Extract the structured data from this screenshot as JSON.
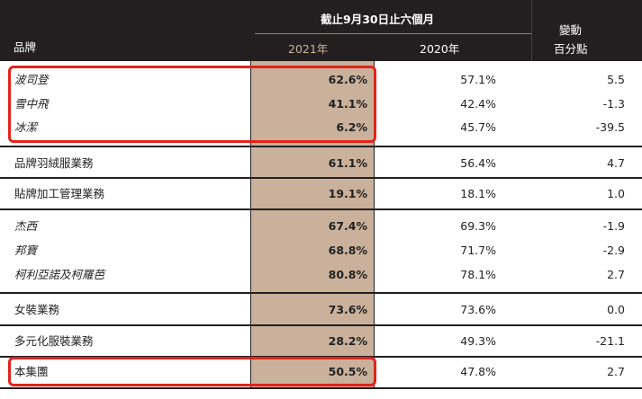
{
  "header": {
    "brand_label": "品牌",
    "period_label": "截止9月30日止六個月",
    "col_2021": "2021年",
    "col_2020": "2020年",
    "change_line1": "變動",
    "change_line2": "百分點"
  },
  "rows": [
    {
      "name": "波司登",
      "v2021": "62.6%",
      "v2020": "57.1%",
      "change": "5.5"
    },
    {
      "name": "雪中飛",
      "v2021": "41.1%",
      "v2020": "42.4%",
      "change": "-1.3"
    },
    {
      "name": "冰潔",
      "v2021": "6.2%",
      "v2020": "45.7%",
      "change": "-39.5"
    },
    {
      "name": "品牌羽絨服業務",
      "v2021": "61.1%",
      "v2020": "56.4%",
      "change": "4.7"
    },
    {
      "name": "貼牌加工管理業務",
      "v2021": "19.1%",
      "v2020": "18.1%",
      "change": "1.0"
    },
    {
      "name": "杰西",
      "v2021": "67.4%",
      "v2020": "69.3%",
      "change": "-1.9"
    },
    {
      "name": "邦寶",
      "v2021": "68.8%",
      "v2020": "71.7%",
      "change": "-2.9"
    },
    {
      "name": "柯利亞諾及柯羅芭",
      "v2021": "80.8%",
      "v2020": "78.1%",
      "change": "2.7"
    },
    {
      "name": "女裝業務",
      "v2021": "73.6%",
      "v2020": "73.6%",
      "change": "0.0"
    },
    {
      "name": "多元化服裝業務",
      "v2021": "28.2%",
      "v2020": "49.3%",
      "change": "-21.1"
    },
    {
      "name": "本集團",
      "v2021": "50.5%",
      "v2020": "47.8%",
      "change": "2.7"
    }
  ],
  "colors": {
    "header_bg": "#231f20",
    "highlight_col": "#c9b19b",
    "callout": "#e2231a"
  }
}
